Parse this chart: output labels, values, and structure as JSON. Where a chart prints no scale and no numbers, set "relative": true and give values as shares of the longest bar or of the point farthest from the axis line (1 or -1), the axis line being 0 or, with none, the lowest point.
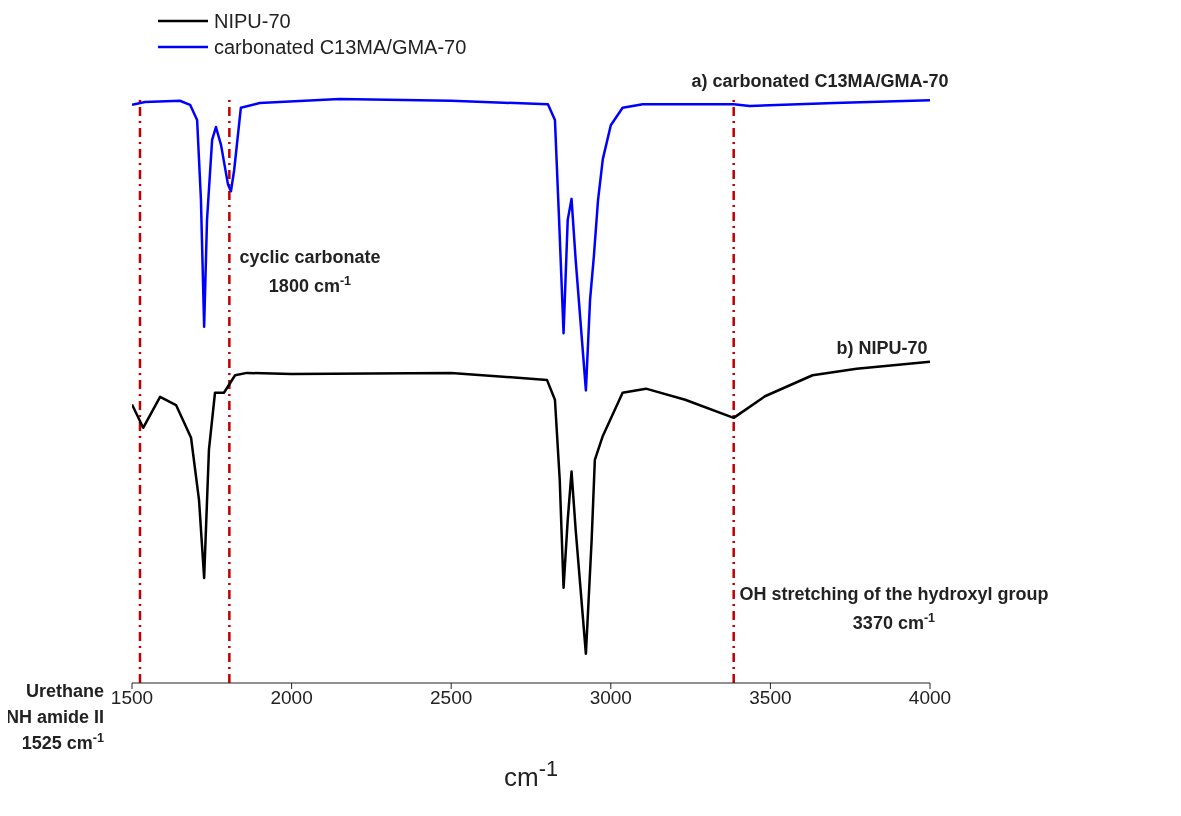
{
  "chart_data": {
    "type": "line",
    "relative": true,
    "xlabel": "cm$^{-1}$",
    "xlim": [
      1500,
      4000
    ],
    "xticks": [
      1500,
      2000,
      2500,
      3000,
      3500,
      4000
    ],
    "legend": "top left",
    "grid": false,
    "marker": "none",
    "line_style": "solid",
    "series": [
      {
        "name": "NIPU-70",
        "color": "#000000",
        "x": [
          1500,
          1535,
          1588,
          1638,
          1685,
          1710,
          1726,
          1741,
          1760,
          1788,
          1823,
          1860,
          2000,
          2500,
          2800,
          2825,
          2840,
          2852,
          2865,
          2877,
          2890,
          2922,
          2940,
          2950,
          2975,
          3037,
          3110,
          3233,
          3385,
          3483,
          3632,
          3770,
          4000
        ],
        "values": [
          0.477,
          0.437,
          0.49,
          0.476,
          0.42,
          0.313,
          0.18,
          0.399,
          0.497,
          0.497,
          0.527,
          0.531,
          0.529,
          0.531,
          0.519,
          0.485,
          0.348,
          0.163,
          0.279,
          0.362,
          0.262,
          0.05,
          0.245,
          0.382,
          0.423,
          0.497,
          0.504,
          0.485,
          0.454,
          0.491,
          0.527,
          0.538,
          0.55
        ]
      },
      {
        "name": "carbonated C13MA/GMA-70",
        "color": "#0000ff",
        "x": [
          1500,
          1541,
          1650,
          1682,
          1704,
          1716,
          1726,
          1735,
          1751,
          1763,
          1779,
          1801,
          1810,
          1820,
          1841,
          1900,
          2150,
          2500,
          2803,
          2825,
          2838,
          2852,
          2865,
          2877,
          2890,
          2922,
          2935,
          2947,
          2960,
          2975,
          3000,
          3037,
          3100,
          3385,
          3435,
          3700,
          4000
        ],
        "values": [
          0.99,
          0.995,
          0.997,
          0.99,
          0.964,
          0.827,
          0.61,
          0.793,
          0.93,
          0.952,
          0.921,
          0.853,
          0.842,
          0.878,
          0.985,
          0.993,
          1.0,
          0.997,
          0.991,
          0.964,
          0.793,
          0.599,
          0.793,
          0.829,
          0.724,
          0.501,
          0.656,
          0.731,
          0.827,
          0.897,
          0.955,
          0.985,
          0.991,
          0.991,
          0.988,
          0.993,
          0.998
        ]
      }
    ],
    "ref_lines": [
      {
        "axis": "x",
        "value": 1525,
        "label": "Urethane\nNH amide II\n1525 cm$^{-1}$",
        "color": "#c00000",
        "line_style": "dashed"
      },
      {
        "axis": "x",
        "value": 1805,
        "color": "#c00000",
        "line_style": "dashed"
      },
      {
        "axis": "x",
        "value": 3385,
        "color": "#c00000",
        "line_style": "dashed"
      }
    ],
    "annotations": [
      "a) carbonated C13MA/GMA-70",
      "cyclic carbonate\n1800 cm$^{-1}$",
      "b) NIPU-70",
      "OH stretching of the hydroxyl group\n3370 cm$^{-1}$"
    ]
  }
}
